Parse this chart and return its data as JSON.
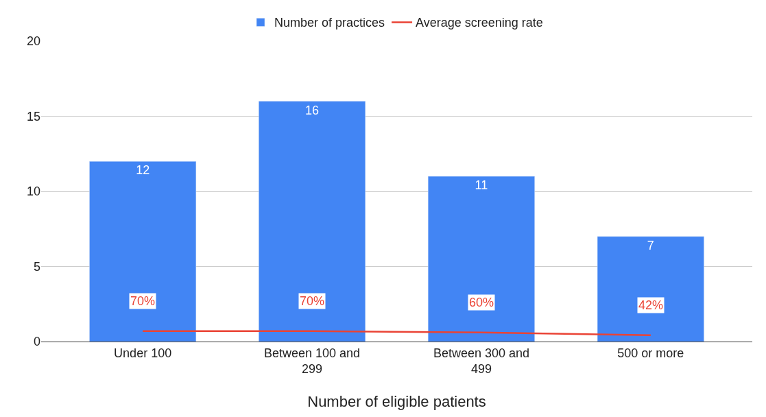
{
  "chart_data": {
    "type": "bar",
    "xlabel": "Number of eligible patients",
    "categories": [
      "Under 100",
      "Between 100 and 299",
      "Between 300 and 499",
      "500 or more"
    ],
    "series": [
      {
        "name": "Number of practices",
        "color": "#4285f4",
        "values": [
          12,
          16,
          11,
          7
        ],
        "data_labels": true
      },
      {
        "name": "Average screening rate",
        "type": "line",
        "color": "#ea4335",
        "values": [
          0.7,
          0.7,
          0.6,
          0.42
        ],
        "value_labels": [
          "70%",
          "70%",
          "60%",
          "42%"
        ],
        "marker": "none"
      }
    ],
    "ylim": [
      0,
      20
    ],
    "yticks": [
      0,
      5,
      10,
      15,
      20
    ],
    "grid": "y",
    "legend": "top"
  }
}
